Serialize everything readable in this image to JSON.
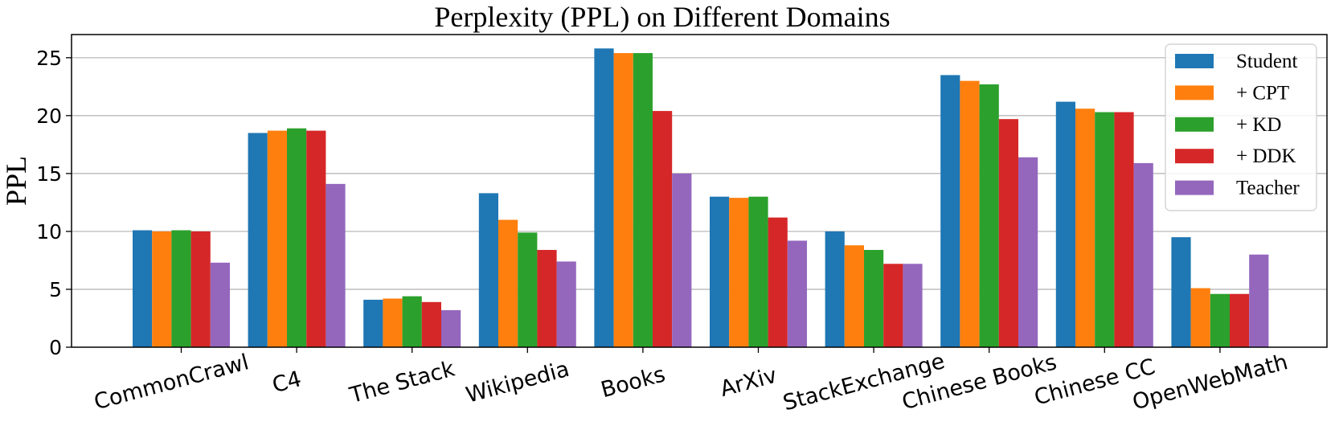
{
  "chart_data": {
    "type": "bar",
    "title": "Perplexity (PPL) on Different Domains",
    "xlabel": "",
    "ylabel": "PPL",
    "ylim": [
      0,
      27
    ],
    "yticks": [
      0,
      5,
      10,
      15,
      20,
      25
    ],
    "grid": "horizontal",
    "legend_position": "top-right",
    "categories": [
      "CommonCrawl",
      "C4",
      "The Stack",
      "Wikipedia",
      "Books",
      "ArXiv",
      "StackExchange",
      "Chinese Books",
      "Chinese CC",
      "OpenWebMath"
    ],
    "series": [
      {
        "name": "Student",
        "color": "#1f77b4",
        "values": [
          10.1,
          18.5,
          4.1,
          13.3,
          25.8,
          13.0,
          10.0,
          23.5,
          21.2,
          9.5
        ]
      },
      {
        "name": "+ CPT",
        "color": "#ff7f0e",
        "values": [
          10.0,
          18.7,
          4.2,
          11.0,
          25.4,
          12.9,
          8.8,
          23.0,
          20.6,
          5.1
        ]
      },
      {
        "name": "+ KD",
        "color": "#2ca02c",
        "values": [
          10.1,
          18.9,
          4.4,
          9.9,
          25.4,
          13.0,
          8.4,
          22.7,
          20.3,
          4.6
        ]
      },
      {
        "name": "+ DDK",
        "color": "#d62728",
        "values": [
          10.0,
          18.7,
          3.9,
          8.4,
          20.4,
          11.2,
          7.2,
          19.7,
          20.3,
          4.6
        ]
      },
      {
        "name": "Teacher",
        "color": "#9467bd",
        "values": [
          7.3,
          14.1,
          3.2,
          7.4,
          15.0,
          9.2,
          7.2,
          16.4,
          15.9,
          8.0
        ]
      }
    ]
  }
}
